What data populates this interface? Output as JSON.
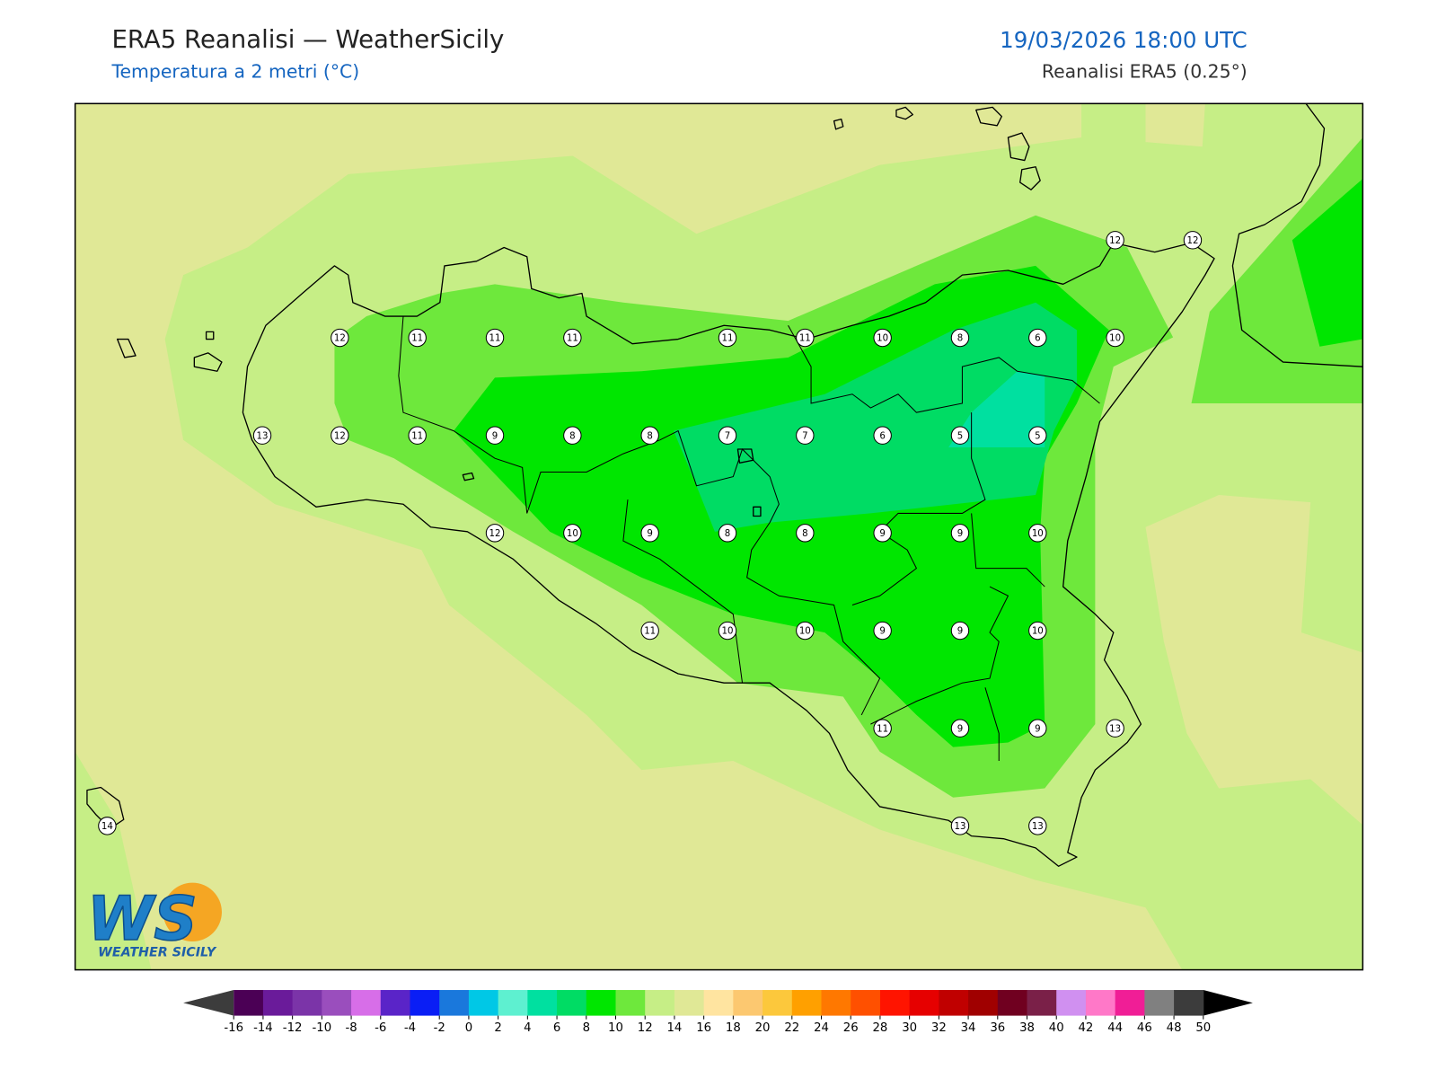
{
  "header": {
    "title": "ERA5 Reanalisi — WeatherSicily",
    "subtitle": "Temperatura a 2 metri (°C)",
    "datetime": "19/03/2026 18:00 UTC",
    "source": "Reanalisi ERA5 (0.25°)"
  },
  "map": {
    "stations": [
      [
        null,
        null,
        null,
        null,
        null,
        null,
        null,
        null,
        null,
        null,
        null,
        null,
        null,
        12,
        12
      ],
      [
        null,
        null,
        null,
        12,
        11,
        11,
        11,
        null,
        11,
        11,
        10,
        8,
        6,
        10,
        null
      ],
      [
        null,
        null,
        13,
        12,
        11,
        9,
        8,
        8,
        7,
        7,
        6,
        5,
        5,
        null,
        null
      ],
      [
        null,
        null,
        null,
        null,
        null,
        12,
        10,
        9,
        8,
        8,
        9,
        9,
        10,
        null,
        null
      ],
      [
        null,
        null,
        null,
        null,
        null,
        null,
        null,
        11,
        10,
        10,
        9,
        9,
        10,
        null,
        null
      ],
      [
        null,
        null,
        null,
        null,
        null,
        null,
        null,
        null,
        null,
        null,
        11,
        9,
        9,
        13,
        null
      ],
      [
        14,
        null,
        null,
        null,
        null,
        null,
        null,
        null,
        null,
        null,
        null,
        13,
        13,
        null,
        null
      ]
    ]
  },
  "colorbar": {
    "ticks": [
      -16,
      -14,
      -12,
      -10,
      -8,
      -6,
      -4,
      -2,
      0,
      2,
      4,
      6,
      8,
      10,
      12,
      14,
      16,
      18,
      20,
      22,
      24,
      26,
      28,
      30,
      32,
      34,
      36,
      38,
      40,
      42,
      44,
      46,
      48,
      50
    ],
    "colors": [
      "#4b0055",
      "#6a1b9a",
      "#7b34a8",
      "#9a4ebd",
      "#d76ee8",
      "#5a24c8",
      "#0a1ef5",
      "#1a78dc",
      "#00c8e6",
      "#5ef0d0",
      "#00e0a0",
      "#00dc64",
      "#00e600",
      "#6ee83c",
      "#c6ee86",
      "#e0e896",
      "#ffe4a0",
      "#fcc870",
      "#fcc83c",
      "#ffa000",
      "#ff7800",
      "#ff5000",
      "#ff1400",
      "#e60000",
      "#c00000",
      "#a00000",
      "#700020",
      "#7a2048",
      "#d090f0",
      "#ff78c8",
      "#f01e96",
      "#808080",
      "#3c3c3c"
    ],
    "under_color": "#3c3c3c",
    "over_color": "#000000"
  },
  "logo": {
    "mark": "WS",
    "text": "WEATHER SICILY"
  }
}
